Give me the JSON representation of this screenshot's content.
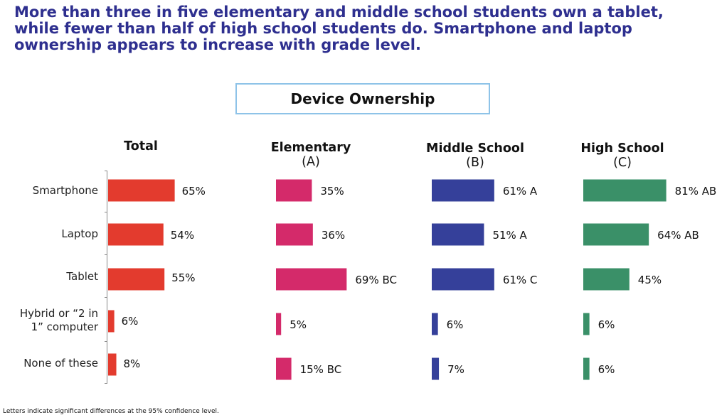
{
  "headline": [
    "More than three in five elementary and middle school students own a tablet,",
    "while fewer than half of high school students do.  Smartphone and laptop",
    "ownership appears to increase with grade level."
  ],
  "footnote": "Letters indicate significant differences at the 95% confidence level.",
  "chart_data": {
    "type": "bar",
    "orientation": "horizontal",
    "title": "Device Ownership",
    "categories": [
      "Smartphone",
      "Laptop",
      "Tablet",
      "Hybrid or “2 in 1” computer",
      "None of these"
    ],
    "category_lines": [
      [
        "Smartphone"
      ],
      [
        "Laptop"
      ],
      [
        "Tablet"
      ],
      [
        "Hybrid or “2 in",
        "1” computer"
      ],
      [
        "None of these"
      ]
    ],
    "unit": "%",
    "series": [
      {
        "name": "Total",
        "letter": "",
        "color": "#e33b2e",
        "values": [
          65,
          54,
          55,
          6,
          8
        ],
        "sig": [
          "",
          "",
          "",
          "",
          ""
        ]
      },
      {
        "name": "Elementary",
        "letter": "(A)",
        "color": "#d42a6a",
        "values": [
          35,
          36,
          69,
          5,
          15
        ],
        "sig": [
          "",
          "",
          "BC",
          "",
          "BC"
        ]
      },
      {
        "name": "Middle School",
        "letter": "(B)",
        "color": "#35409a",
        "values": [
          61,
          51,
          61,
          6,
          7
        ],
        "sig": [
          "A",
          "A",
          "C",
          "",
          ""
        ]
      },
      {
        "name": "High School",
        "letter": "(C)",
        "color": "#3a9068",
        "values": [
          81,
          64,
          45,
          6,
          6
        ],
        "sig": [
          "AB",
          "AB",
          "",
          "",
          ""
        ]
      }
    ]
  }
}
